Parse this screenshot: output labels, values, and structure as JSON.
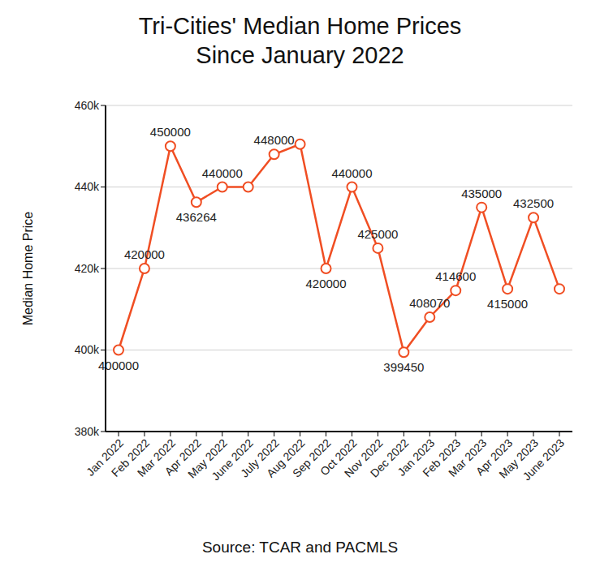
{
  "chart_data": {
    "type": "line",
    "title": "Tri-Cities' Median Home Prices\nSince January 2022",
    "y_label": "Median Home Price",
    "source": "Source: TCAR and PACMLS",
    "categories": [
      "Jan 2022",
      "Feb 2022",
      "Mar 2022",
      "Apr 2022",
      "May 2022",
      "June 2022",
      "July 2022",
      "Aug 2022",
      "Sep 2022",
      "Oct 2022",
      "Nov 2022",
      "Dec 2022",
      "Jan 2023",
      "Feb 2023",
      "Mar 2023",
      "Apr 2023",
      "May 2023",
      "June 2023"
    ],
    "values": [
      400000,
      420000,
      450000,
      436264,
      440000,
      440000,
      448000,
      450500,
      420000,
      440000,
      425000,
      399450,
      408070,
      414600,
      435000,
      415000,
      432500,
      415000
    ],
    "value_labels": [
      "400000",
      "420000",
      "450000",
      "436264",
      "440000",
      null,
      "448000",
      null,
      "420000",
      "440000",
      "425000",
      "399450",
      "408070",
      "414600",
      "435000",
      "415000",
      "432500",
      null
    ],
    "data_labels": true,
    "color": "#f04e23",
    "marker": "circle",
    "ylim": [
      380000,
      460000
    ],
    "yticks": [
      {
        "value": 380000,
        "label": "380k"
      },
      {
        "value": 400000,
        "label": "400k"
      },
      {
        "value": 420000,
        "label": "420k"
      },
      {
        "value": 440000,
        "label": "440k"
      },
      {
        "value": 460000,
        "label": "460k"
      }
    ],
    "grid": true
  }
}
